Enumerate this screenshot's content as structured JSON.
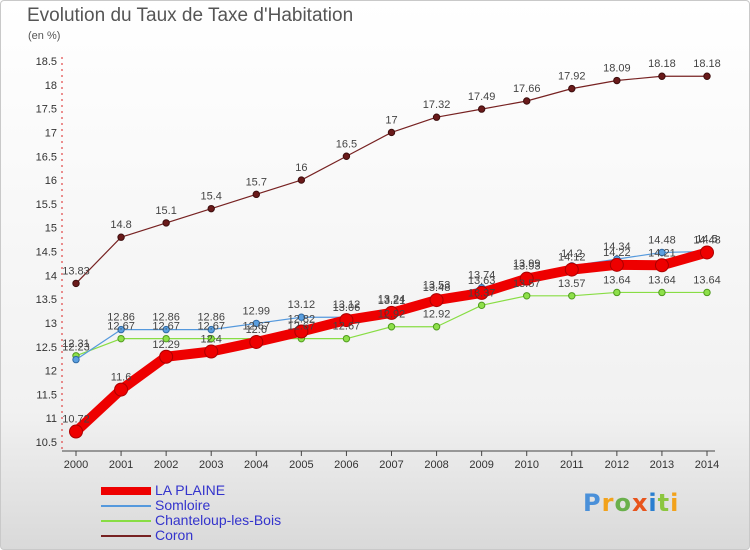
{
  "chart_data": {
    "type": "line",
    "title": "Evolution du Taux de Taxe d'Habitation",
    "subtitle": "(en %)",
    "xlabel": "",
    "ylabel": "",
    "categories": [
      "2000",
      "2001",
      "2002",
      "2003",
      "2004",
      "2005",
      "2006",
      "2007",
      "2008",
      "2009",
      "2010",
      "2011",
      "2012",
      "2013",
      "2014"
    ],
    "y_ticks": [
      "10.5",
      "11",
      "11.5",
      "12",
      "12.5",
      "13",
      "13.5",
      "14",
      "14.5",
      "15",
      "15.5",
      "16",
      "16.5",
      "17",
      "17.5",
      "18",
      "18.5"
    ],
    "ylim": [
      10.5,
      18.5
    ],
    "grid": false,
    "legend": "bottom-left",
    "series": [
      {
        "name": "LA PLAINE",
        "color": "#ee0000",
        "values": [
          10.72,
          11.6,
          12.29,
          12.4,
          12.6,
          12.82,
          13.06,
          13.21,
          13.48,
          13.63,
          13.93,
          14.12,
          14.22,
          14.21,
          14.48
        ],
        "labels": [
          "10.72",
          "11.6",
          "12.29",
          "12.4",
          "12.6",
          "12.82",
          "13.06",
          "13.21",
          "13.48",
          "13.63",
          "13.93",
          "14.12",
          "14.22",
          "14.21",
          "14.48"
        ]
      },
      {
        "name": "Somloire",
        "color": "#5599dd",
        "values": [
          12.23,
          12.86,
          12.86,
          12.86,
          12.99,
          13.12,
          13.12,
          13.24,
          13.53,
          13.74,
          13.99,
          14.2,
          14.34,
          14.48,
          14.5
        ],
        "labels": [
          "12.23",
          "12.86",
          "12.86",
          "12.86",
          "12.99",
          "13.12",
          "13.12",
          "13.24",
          "13.53",
          "13.74",
          "13.99",
          "14.2",
          "14.34",
          "14.48",
          "14.5"
        ]
      },
      {
        "name": "Chanteloup-les-Bois",
        "color": "#88dd44",
        "values": [
          12.31,
          12.67,
          12.67,
          12.67,
          12.67,
          12.67,
          12.67,
          12.92,
          12.92,
          13.37,
          13.57,
          13.57,
          13.64,
          13.64,
          13.64
        ],
        "labels": [
          "12.31",
          "12.67",
          "12.67",
          "12.67",
          "12.67",
          "12.67",
          "12.67",
          "12.92",
          "12.92",
          "13.37",
          "13.57",
          "13.57",
          "13.64",
          "13.64",
          "13.64"
        ]
      },
      {
        "name": "Coron",
        "color": "#772222",
        "values": [
          13.83,
          14.8,
          15.1,
          15.4,
          15.7,
          16.0,
          16.5,
          17.0,
          17.32,
          17.49,
          17.66,
          17.92,
          18.09,
          18.18,
          18.18
        ],
        "labels": [
          "13.83",
          "14.8",
          "15.1",
          "15.4",
          "15.7",
          "16",
          "16.5",
          "17",
          "17.32",
          "17.49",
          "17.66",
          "17.92",
          "18.09",
          "18.18",
          "18.18"
        ]
      }
    ]
  },
  "legend": {
    "items": [
      "LA PLAINE",
      "Somloire",
      "Chanteloup-les-Bois",
      "Coron"
    ]
  },
  "logo": {
    "text": "Proxiti",
    "colors": [
      "#4a90d9",
      "#f2a21b",
      "#6ab04c",
      "#e8541c",
      "#2a7fd0",
      "#8cc63f",
      "#f2a21b"
    ]
  }
}
